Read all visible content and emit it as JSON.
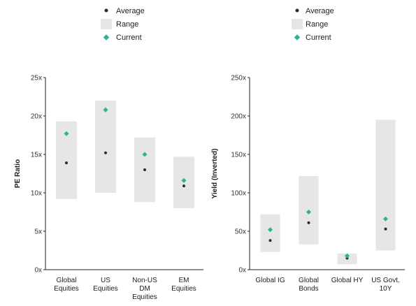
{
  "legend": {
    "average": "Average",
    "range": "Range",
    "current": "Current"
  },
  "colors": {
    "range": "#e6e6e6",
    "average": "#2b2b2b",
    "current": "#2ab59b",
    "axis": "#222222"
  },
  "chart_data": [
    {
      "type": "range-dot",
      "ylabel": "PE Ratio",
      "ylim": [
        0,
        25
      ],
      "yticks": [
        0,
        5,
        10,
        15,
        20,
        25
      ],
      "tick_suffix": "x",
      "legend_position": "top",
      "categories": [
        [
          "Global",
          "Equities"
        ],
        [
          "US",
          "Equities"
        ],
        [
          "Non-US",
          "DM",
          "Equities"
        ],
        [
          "EM",
          "Equities"
        ]
      ],
      "series": [
        {
          "name": "Range",
          "low": [
            9.2,
            10.0,
            8.8,
            8.0
          ],
          "high": [
            19.3,
            22.0,
            17.2,
            14.7
          ]
        },
        {
          "name": "Average",
          "values": [
            13.9,
            15.2,
            13.0,
            10.9
          ]
        },
        {
          "name": "Current",
          "values": [
            17.7,
            20.8,
            15.0,
            11.6
          ]
        }
      ]
    },
    {
      "type": "range-dot",
      "ylabel": "Yield (Inverted)",
      "ylim": [
        0,
        250
      ],
      "yticks": [
        0,
        50,
        100,
        150,
        200,
        250
      ],
      "tick_suffix": "x",
      "legend_position": "top",
      "categories": [
        [
          "Global IG"
        ],
        [
          "Global",
          "Bonds"
        ],
        [
          "Global HY"
        ],
        [
          "US Govt.",
          "10Y"
        ]
      ],
      "series": [
        {
          "name": "Range",
          "low": [
            23,
            33,
            7,
            25
          ],
          "high": [
            72,
            122,
            21,
            195
          ]
        },
        {
          "name": "Average",
          "values": [
            38,
            61,
            15,
            53
          ]
        },
        {
          "name": "Current",
          "values": [
            52,
            75,
            18,
            66
          ]
        }
      ]
    }
  ]
}
